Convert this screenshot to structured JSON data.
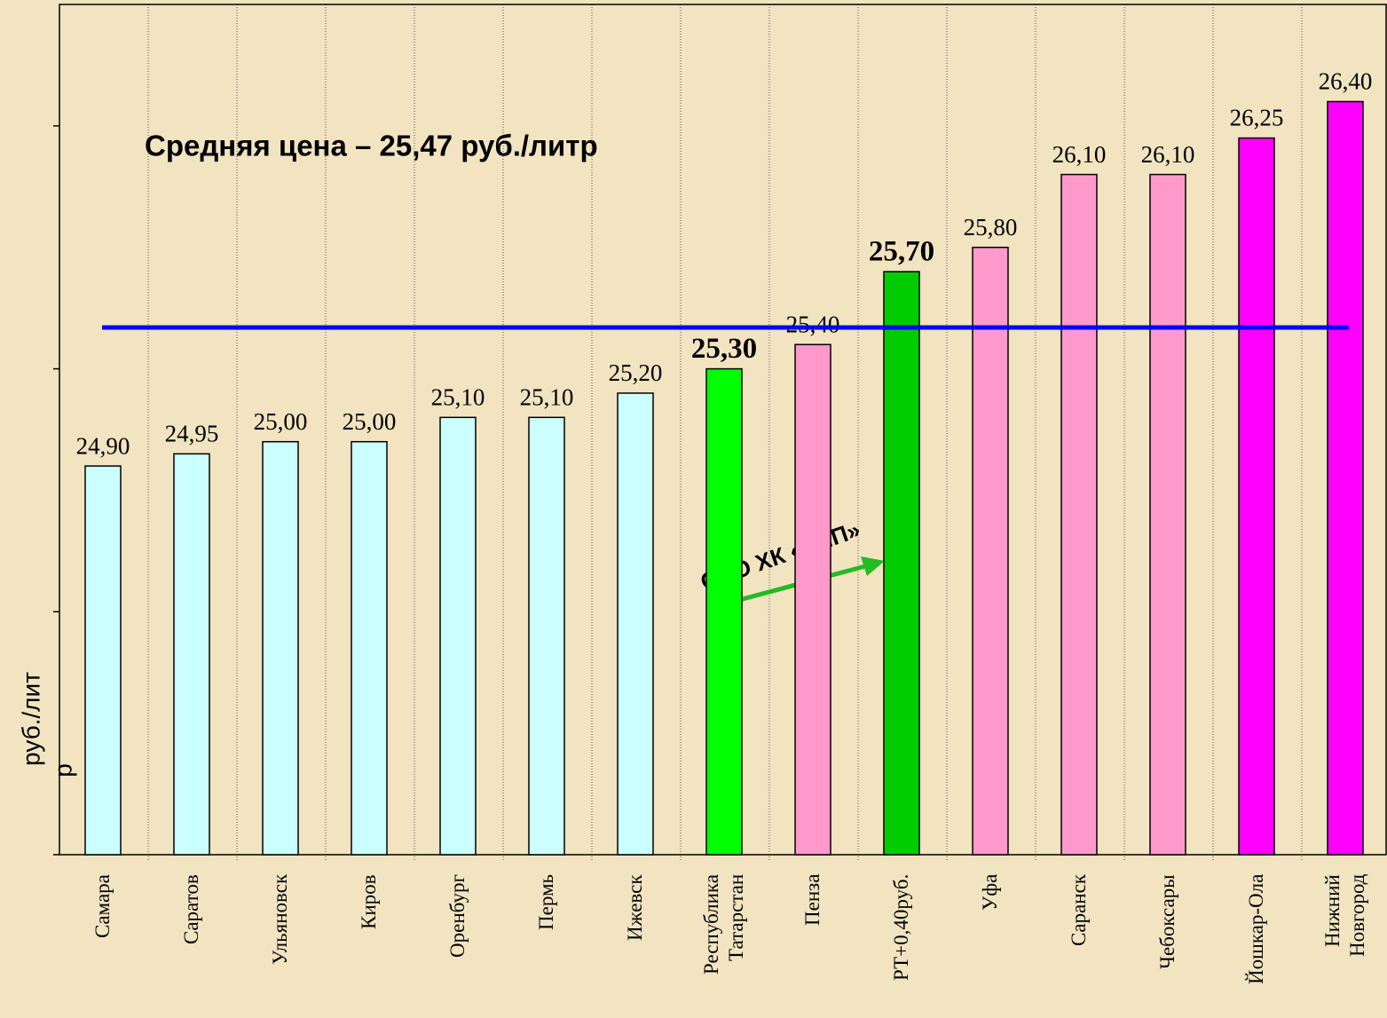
{
  "chart_data": {
    "type": "bar",
    "y_label": "руб./лит",
    "y_label_extra": "р",
    "categories": [
      "Самара",
      "Саратов",
      "Ульяновск",
      "Киров",
      "Оренбург",
      "Пермь",
      "Ижевск",
      "Республика\nТатарстан",
      "Пенза",
      "РТ+0,40руб.",
      "Уфа",
      "Саранск",
      "Чебоксары",
      "Йошкар-Ола",
      "Нижний\nНовгород"
    ],
    "values": [
      24.9,
      24.95,
      25.0,
      25.0,
      25.1,
      25.1,
      25.2,
      25.3,
      25.4,
      25.7,
      25.8,
      26.1,
      26.1,
      26.25,
      26.4
    ],
    "value_labels": [
      "24,90",
      "24,95",
      "25,00",
      "25,00",
      "25,10",
      "25,10",
      "25,20",
      "25,30",
      "25,40",
      "25,70",
      "25,80",
      "26,10",
      "26,10",
      "26,25",
      "26,40"
    ],
    "colors": [
      "#ccffff",
      "#ccffff",
      "#ccffff",
      "#ccffff",
      "#ccffff",
      "#ccffff",
      "#ccffff",
      "#00ff00",
      "#ff99cc",
      "#00cc00",
      "#ff99cc",
      "#ff99cc",
      "#ff99cc",
      "#ff00ff",
      "#ff00ff"
    ],
    "bold_labels": [
      false,
      false,
      false,
      false,
      false,
      false,
      false,
      true,
      false,
      true,
      false,
      false,
      false,
      false,
      false
    ],
    "ylim": [
      23.3,
      26.8
    ],
    "yticks": [
      23.3,
      24.3,
      25.3,
      26.3
    ],
    "average_line": {
      "value": 25.47,
      "color": "#0000ff",
      "label": "Средняя цена – 25,47 руб./литр"
    },
    "annotation": "ОАО ХК «ТНП»"
  }
}
